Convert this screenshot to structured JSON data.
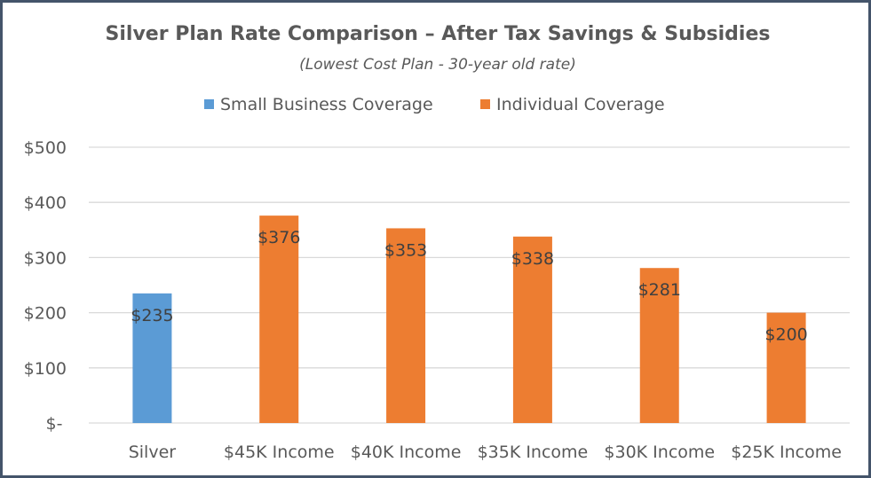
{
  "chart_data": {
    "type": "bar",
    "title": "Silver Plan Rate Comparison – After Tax Savings & Subsidies",
    "subtitle": "(Lowest Cost Plan - 30-year old rate)",
    "categories": [
      "Silver",
      "$45K Income",
      "$40K Income",
      "$35K Income",
      "$30K Income",
      "$25K Income"
    ],
    "series": [
      {
        "name": "Small Business Coverage",
        "color": "#5b9bd5",
        "values": [
          235,
          null,
          null,
          null,
          null,
          null
        ]
      },
      {
        "name": "Individual Coverage",
        "color": "#ed7d31",
        "values": [
          null,
          376,
          353,
          338,
          281,
          200
        ]
      }
    ],
    "data_labels": [
      "$235",
      "$376",
      "$353",
      "$338",
      "$281",
      "$200"
    ],
    "y_ticks": [
      {
        "value": 0,
        "label": "$-"
      },
      {
        "value": 100,
        "label": "$100"
      },
      {
        "value": 200,
        "label": "$200"
      },
      {
        "value": 300,
        "label": "$300"
      },
      {
        "value": 400,
        "label": "$400"
      },
      {
        "value": 500,
        "label": "$500"
      }
    ],
    "ylim": [
      0,
      500
    ],
    "grid": true,
    "legend": "top",
    "xlabel": "",
    "ylabel": ""
  }
}
